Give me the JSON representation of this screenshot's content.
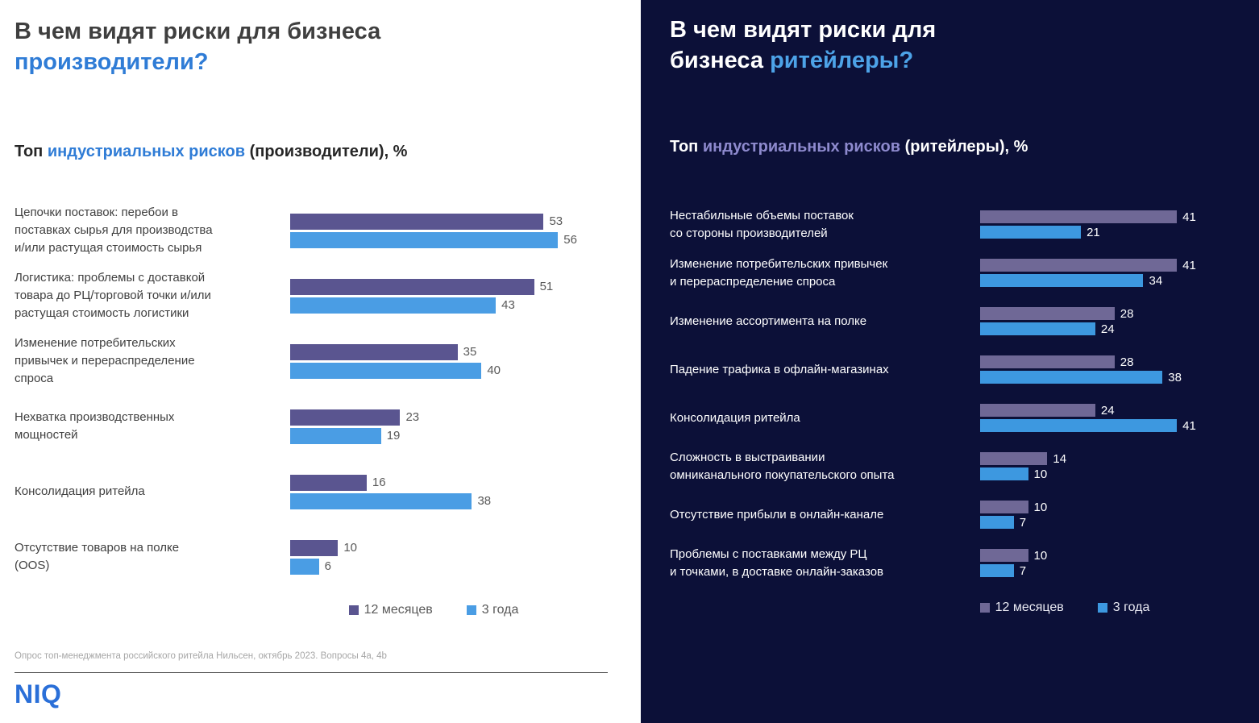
{
  "left": {
    "title_line1": "В чем видят риски для бизнеса",
    "title_line2_accent": "производители?",
    "subtitle_prefix": "Топ ",
    "subtitle_highlight": "индустриальных рисков",
    "subtitle_suffix": " (производители), %",
    "footnote": "Опрос топ-менеджмента российского ритейла Нильсен, октябрь 2023. Вопросы 4a, 4b",
    "logo_text": "NIQ"
  },
  "right": {
    "title_line1": "В чем видят риски для",
    "title_line2_prefix": "бизнеса ",
    "title_line2_accent": "ритейлеры?",
    "subtitle_prefix": "Топ ",
    "subtitle_highlight": "индустриальных рисков",
    "subtitle_suffix": " (ритейлеры), %"
  },
  "colors": {
    "left_accent_blue": "#2f7cd6",
    "right_accent_blue": "#4da3e8",
    "right_subtitle_lavender": "#8e8ace",
    "dark_background": "#0c1038",
    "left_series_12m_purple": "#5a5590",
    "left_series_3y_blue": "#4a9de4",
    "right_series_12m_purple": "#6f6896",
    "right_series_3y_blue": "#3d98e0"
  },
  "chart_data": [
    {
      "type": "bar",
      "orientation": "horizontal",
      "title": "Топ индустриальных рисков (производители), %",
      "legend_position": "bottom",
      "value_labels": true,
      "grid": false,
      "xlim": [
        0,
        60
      ],
      "categories": [
        "Цепочки поставок: перебои в\nпоставках сырья для производства\nи/или растущая стоимость сырья",
        "Логистика: проблемы с доставкой\nтовара до РЦ/торговой точки и/или\nрастущая стоимость логистики",
        "Изменение потребительских\nпривычек и перераспределение\nспроса",
        "Нехватка производственных\nмощностей",
        "Консолидация ритейла",
        "Отсутствие товаров на полке\n(OOS)"
      ],
      "series": [
        {
          "name": "12 месяцев",
          "color": "#5a5590",
          "values": [
            53,
            51,
            35,
            23,
            16,
            10
          ]
        },
        {
          "name": "3 года",
          "color": "#4a9de4",
          "values": [
            56,
            43,
            40,
            19,
            38,
            6
          ]
        }
      ]
    },
    {
      "type": "bar",
      "orientation": "horizontal",
      "title": "Топ индустриальных рисков (ритейлеры), %",
      "legend_position": "bottom",
      "value_labels": true,
      "grid": false,
      "xlim": [
        0,
        45
      ],
      "categories": [
        "Нестабильные объемы поставок\nсо стороны производителей",
        "Изменение потребительских привычек\nи перераспределение спроса",
        "Изменение ассортимента на полке",
        "Падение трафика в офлайн-магазинах",
        "Консолидация ритейла",
        "Сложность в выстраивании\nомниканального покупательского опыта",
        "Отсутствие прибыли в онлайн-канале",
        "Проблемы с поставками между РЦ\nи точками, в доставке онлайн-заказов"
      ],
      "series": [
        {
          "name": "12 месяцев",
          "color": "#6f6896",
          "values": [
            41,
            41,
            28,
            28,
            24,
            14,
            10,
            10
          ]
        },
        {
          "name": "3 года",
          "color": "#3d98e0",
          "values": [
            21,
            34,
            24,
            38,
            41,
            10,
            7,
            7
          ]
        }
      ]
    }
  ]
}
